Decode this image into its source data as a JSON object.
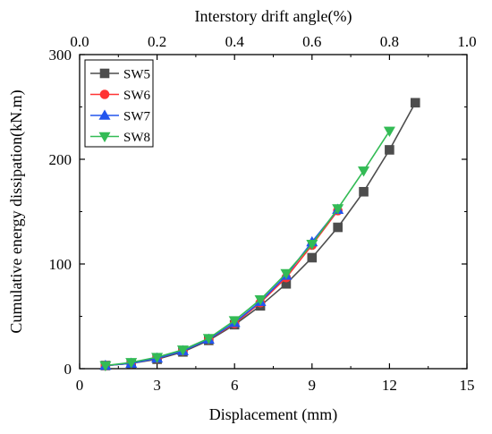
{
  "chart_data": {
    "type": "line",
    "xlabel": "Displacement (mm)",
    "ylabel": "Cumulative energy dissipation(kN.m)",
    "x2label": "Interstory drift angle(%)",
    "xlim": [
      0,
      15
    ],
    "ylim": [
      0,
      300
    ],
    "x2lim": [
      0.0,
      1.0
    ],
    "xticks": [
      "0",
      "3",
      "6",
      "9",
      "12",
      "15"
    ],
    "yticks": [
      "0",
      "100",
      "200",
      "300"
    ],
    "x2ticks": [
      "0.0",
      "0.2",
      "0.4",
      "0.6",
      "0.8",
      "1.0"
    ],
    "legend_position": "top-left",
    "grid": false,
    "series": [
      {
        "name": "SW5",
        "color": "#4d4d4d",
        "marker": "square",
        "x": [
          1,
          2,
          3,
          4,
          5,
          6,
          7,
          8,
          9,
          10,
          11,
          12,
          13
        ],
        "y": [
          3,
          5,
          9,
          16,
          27,
          42,
          60,
          81,
          106,
          135,
          169,
          209,
          254
        ]
      },
      {
        "name": "SW6",
        "color": "#ff3333",
        "marker": "circle",
        "x": [
          1,
          2,
          3,
          4,
          5,
          6,
          7,
          8,
          9,
          10
        ],
        "y": [
          3,
          5,
          10,
          17,
          28,
          43,
          63,
          87,
          118,
          151
        ]
      },
      {
        "name": "SW7",
        "color": "#2255ee",
        "marker": "triangle-up",
        "x": [
          1,
          2,
          3,
          4,
          5,
          6,
          7,
          8,
          9,
          10
        ],
        "y": [
          3,
          5,
          10,
          17,
          28,
          44,
          64,
          89,
          121,
          152
        ]
      },
      {
        "name": "SW8",
        "color": "#33bb55",
        "marker": "triangle-down",
        "x": [
          1,
          2,
          3,
          4,
          5,
          6,
          7,
          8,
          9,
          10,
          11,
          12
        ],
        "y": [
          3,
          6,
          11,
          18,
          29,
          46,
          66,
          91,
          119,
          153,
          189,
          227
        ]
      }
    ]
  }
}
